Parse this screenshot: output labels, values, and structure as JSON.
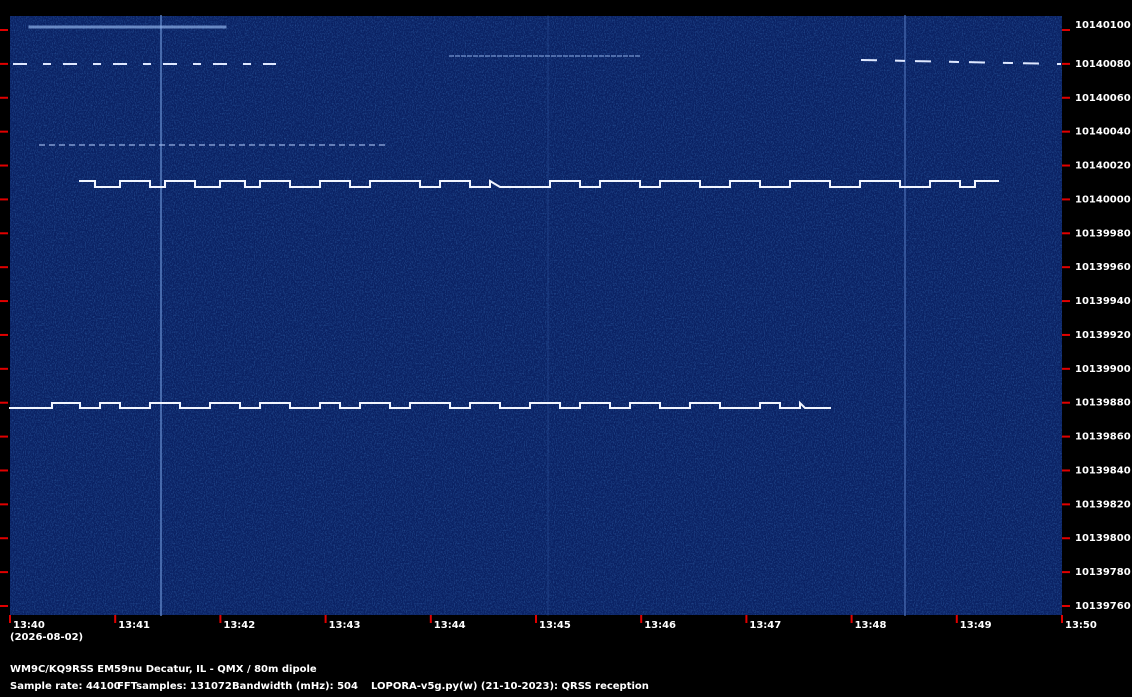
{
  "y_axis": {
    "labels": [
      "10140100",
      "10140080",
      "10140060",
      "10140040",
      "10140020",
      "10140000",
      "10139980",
      "10139960",
      "10139940",
      "10139920",
      "10139900",
      "10139880",
      "10139860",
      "10139840",
      "10139820",
      "10139800",
      "10139780",
      "10139760"
    ]
  },
  "x_axis": {
    "labels": [
      "13:40",
      "13:41",
      "13:42",
      "13:43",
      "13:44",
      "13:45",
      "13:46",
      "13:47",
      "13:48",
      "13:49",
      "13:50"
    ],
    "date": "(2026-08-02)"
  },
  "footer": {
    "station": "WM9C/KQ9RSS EM59nu Decatur, IL - QMX / 80m dipole",
    "sample_rate": "Sample rate: 44100",
    "fft": "FFTsamples: 131072",
    "bandwidth": "Bandwidth (mHz): 504",
    "software": "LOPORA-v5g.py(w) (21-10-2023): QRSS reception"
  }
}
